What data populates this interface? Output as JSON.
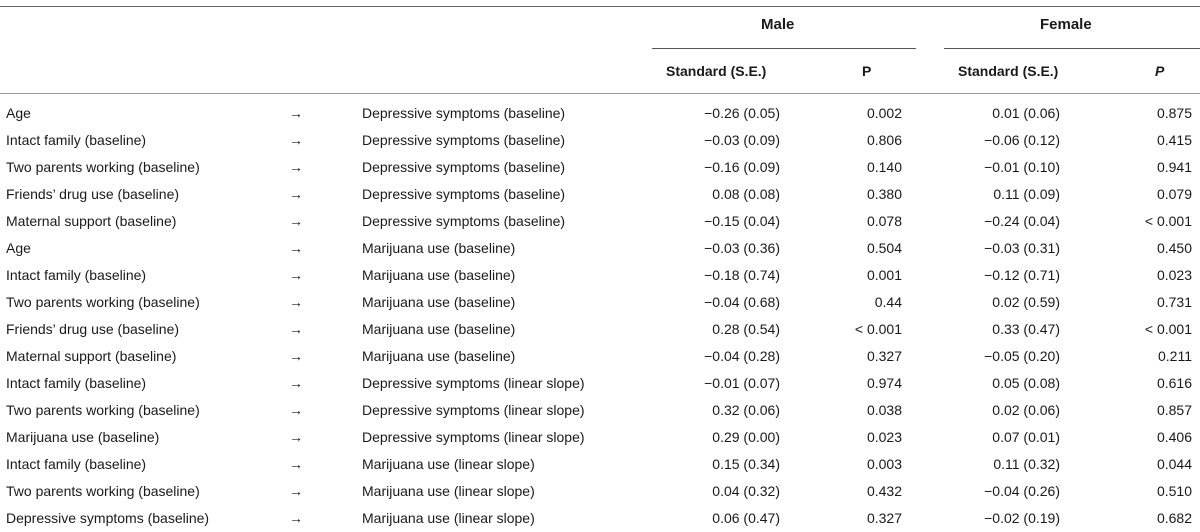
{
  "header": {
    "male_label": "Male",
    "female_label": "Female",
    "male_std_label": "Standard (S.E.)",
    "male_p_label": "P",
    "female_std_label": "Standard (S.E.)",
    "female_p_label": "P"
  },
  "rows": [
    {
      "predictor": "Age",
      "arrow": "→",
      "outcome": "Depressive symptoms (baseline)",
      "male_std": "−0.26 (0.05)",
      "male_p": "0.002",
      "female_std": "0.01 (0.06)",
      "female_p": "0.875"
    },
    {
      "predictor": "Intact family (baseline)",
      "arrow": "→",
      "outcome": "Depressive symptoms (baseline)",
      "male_std": "−0.03 (0.09)",
      "male_p": "0.806",
      "female_std": "−0.06 (0.12)",
      "female_p": "0.415"
    },
    {
      "predictor": "Two parents working (baseline)",
      "arrow": "→",
      "outcome": "Depressive symptoms (baseline)",
      "male_std": "−0.16 (0.09)",
      "male_p": "0.140",
      "female_std": "−0.01 (0.10)",
      "female_p": "0.941"
    },
    {
      "predictor": "Friends’ drug use (baseline)",
      "arrow": "→",
      "outcome": "Depressive symptoms (baseline)",
      "male_std": "0.08 (0.08)",
      "male_p": "0.380",
      "female_std": "0.11 (0.09)",
      "female_p": "0.079"
    },
    {
      "predictor": "Maternal support (baseline)",
      "arrow": "→",
      "outcome": "Depressive symptoms (baseline)",
      "male_std": "−0.15 (0.04)",
      "male_p": "0.078",
      "female_std": "−0.24 (0.04)",
      "female_p": "< 0.001"
    },
    {
      "predictor": "Age",
      "arrow": "→",
      "outcome": "Marijuana use (baseline)",
      "male_std": "−0.03 (0.36)",
      "male_p": "0.504",
      "female_std": "−0.03 (0.31)",
      "female_p": "0.450"
    },
    {
      "predictor": "Intact family (baseline)",
      "arrow": "→",
      "outcome": "Marijuana use (baseline)",
      "male_std": "−0.18 (0.74)",
      "male_p": "0.001",
      "female_std": "−0.12 (0.71)",
      "female_p": "0.023"
    },
    {
      "predictor": "Two parents working (baseline)",
      "arrow": "→",
      "outcome": "Marijuana use (baseline)",
      "male_std": "−0.04 (0.68)",
      "male_p": "0.44",
      "female_std": "0.02 (0.59)",
      "female_p": "0.731"
    },
    {
      "predictor": "Friends’ drug use (baseline)",
      "arrow": "→",
      "outcome": "Marijuana use (baseline)",
      "male_std": "0.28 (0.54)",
      "male_p": "< 0.001",
      "female_std": "0.33 (0.47)",
      "female_p": "< 0.001"
    },
    {
      "predictor": "Maternal support (baseline)",
      "arrow": "→",
      "outcome": "Marijuana use (baseline)",
      "male_std": "−0.04 (0.28)",
      "male_p": "0.327",
      "female_std": "−0.05 (0.20)",
      "female_p": "0.211"
    },
    {
      "predictor": "Intact family (baseline)",
      "arrow": "→",
      "outcome": "Depressive symptoms (linear slope)",
      "male_std": "−0.01 (0.07)",
      "male_p": "0.974",
      "female_std": "0.05 (0.08)",
      "female_p": "0.616"
    },
    {
      "predictor": "Two parents working (baseline)",
      "arrow": "→",
      "outcome": "Depressive symptoms (linear slope)",
      "male_std": "0.32 (0.06)",
      "male_p": "0.038",
      "female_std": "0.02 (0.06)",
      "female_p": "0.857"
    },
    {
      "predictor": "Marijuana use (baseline)",
      "arrow": "→",
      "outcome": "Depressive symptoms (linear slope)",
      "male_std": "0.29 (0.00)",
      "male_p": "0.023",
      "female_std": "0.07 (0.01)",
      "female_p": "0.406"
    },
    {
      "predictor": "Intact family (baseline)",
      "arrow": "→",
      "outcome": "Marijuana use (linear slope)",
      "male_std": "0.15 (0.34)",
      "male_p": "0.003",
      "female_std": "0.11 (0.32)",
      "female_p": "0.044"
    },
    {
      "predictor": "Two parents working (baseline)",
      "arrow": "→",
      "outcome": "Marijuana use (linear slope)",
      "male_std": "0.04 (0.32)",
      "male_p": "0.432",
      "female_std": "−0.04 (0.26)",
      "female_p": "0.510"
    },
    {
      "predictor": "Depressive symptoms (baseline)",
      "arrow": "→",
      "outcome": "Marijuana use (linear slope)",
      "male_std": "0.06 (0.47)",
      "male_p": "0.327",
      "female_std": "−0.02 (0.19)",
      "female_p": "0.682"
    }
  ]
}
